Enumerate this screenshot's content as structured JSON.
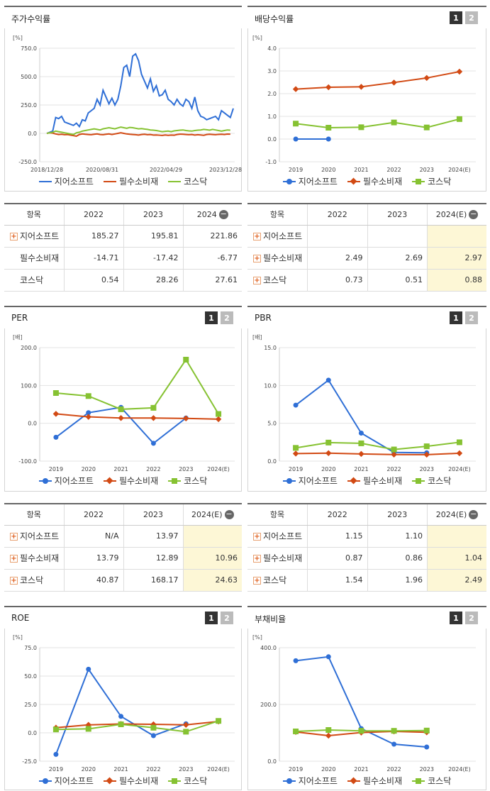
{
  "colors": {
    "series1": "#2f6fd6",
    "series2": "#d24a14",
    "series3": "#86c232"
  },
  "panels": [
    {
      "title": "주가수익률",
      "buttons": []
    },
    {
      "title": "배당수익률",
      "buttons": [
        "1",
        "2"
      ]
    },
    {
      "title": "PER",
      "buttons": [
        "1",
        "2"
      ]
    },
    {
      "title": "PBR",
      "buttons": [
        "1",
        "2"
      ]
    },
    {
      "title": "ROE",
      "buttons": [
        "1",
        "2"
      ]
    },
    {
      "title": "부채비율",
      "buttons": [
        "1",
        "2"
      ]
    }
  ],
  "legend": [
    "지어소프트",
    "필수소비재",
    "코스닥"
  ],
  "chart_data": [
    {
      "type": "line",
      "unit": "[%]",
      "x_ticks": [
        "2018/12/28",
        "2020/08/31",
        "2022/04/29",
        "2023/12/28"
      ],
      "y_ticks": [
        "750.0",
        "500.0",
        "250.0",
        "0.0",
        "-250.0"
      ],
      "ylim": [
        -250,
        750
      ],
      "series": [
        {
          "name": "지어소프트",
          "values": [
            0,
            10,
            20,
            140,
            130,
            150,
            100,
            90,
            80,
            70,
            90,
            60,
            120,
            110,
            180,
            200,
            220,
            300,
            250,
            380,
            320,
            260,
            310,
            250,
            300,
            420,
            580,
            600,
            500,
            680,
            700,
            640,
            520,
            460,
            400,
            480,
            370,
            420,
            330,
            340,
            380,
            300,
            280,
            250,
            300,
            260,
            240,
            300,
            280,
            220,
            320,
            200,
            150,
            140,
            120,
            130,
            140,
            150,
            120,
            200,
            180,
            160,
            140,
            220
          ]
        },
        {
          "name": "필수소비재",
          "values": [
            0,
            5,
            2,
            -5,
            -10,
            -8,
            -12,
            -10,
            -15,
            -20,
            -25,
            -10,
            -5,
            -8,
            -10,
            -12,
            -8,
            -5,
            -10,
            -12,
            -8,
            -5,
            -10,
            -5,
            0,
            5,
            0,
            -5,
            -8,
            -10,
            -12,
            -15,
            -10,
            -8,
            -12,
            -10,
            -15,
            -14,
            -16,
            -18,
            -14,
            -17,
            -15,
            -16,
            -10,
            -7,
            -8,
            -10,
            -12,
            -10,
            -15,
            -12,
            -14,
            -17,
            -10,
            -8,
            -10,
            -12,
            -9,
            -8,
            -10,
            -6,
            -7
          ]
        },
        {
          "name": "코스닥",
          "values": [
            0,
            5,
            10,
            20,
            15,
            10,
            5,
            0,
            -5,
            -10,
            5,
            10,
            20,
            25,
            30,
            35,
            40,
            35,
            30,
            40,
            45,
            50,
            45,
            40,
            48,
            55,
            50,
            45,
            52,
            50,
            45,
            40,
            42,
            38,
            35,
            30,
            28,
            25,
            20,
            15,
            18,
            20,
            15,
            22,
            25,
            28,
            30,
            25,
            22,
            20,
            25,
            28,
            30,
            35,
            32,
            28,
            35,
            30,
            25,
            20,
            25,
            30,
            28
          ]
        }
      ]
    },
    {
      "type": "line",
      "unit": "[%]",
      "categories": [
        "2019",
        "2020",
        "2021",
        "2022",
        "2023",
        "2024(E)"
      ],
      "y_ticks": [
        "4.0",
        "3.0",
        "2.0",
        "1.0",
        "0.0",
        "-1.0"
      ],
      "ylim": [
        -1,
        4
      ],
      "series": [
        {
          "name": "지어소프트",
          "values": [
            0.0,
            0.0,
            null,
            null,
            null,
            null
          ]
        },
        {
          "name": "필수소비재",
          "values": [
            2.2,
            2.28,
            2.3,
            2.49,
            2.69,
            2.97
          ]
        },
        {
          "name": "코스닥",
          "values": [
            0.68,
            0.5,
            0.52,
            0.73,
            0.51,
            0.88
          ]
        }
      ]
    },
    {
      "type": "line",
      "unit": "[배]",
      "categories": [
        "2019",
        "2020",
        "2021",
        "2022",
        "2023",
        "2024(E)"
      ],
      "y_ticks": [
        "200.0",
        "100.0",
        "0.0",
        "-100.0"
      ],
      "ylim": [
        -100,
        200
      ],
      "series": [
        {
          "name": "지어소프트",
          "values": [
            -37,
            28,
            42,
            -53,
            13.97,
            null
          ]
        },
        {
          "name": "필수소비재",
          "values": [
            25,
            17,
            14,
            13.79,
            12.89,
            10.96
          ]
        },
        {
          "name": "코스닥",
          "values": [
            80,
            72,
            37,
            40.87,
            168.17,
            24.63
          ]
        }
      ]
    },
    {
      "type": "line",
      "unit": "[배]",
      "categories": [
        "2019",
        "2020",
        "2021",
        "2022",
        "2023",
        "2024(E)"
      ],
      "y_ticks": [
        "15.0",
        "10.0",
        "5.0",
        "0.0"
      ],
      "ylim": [
        0,
        15
      ],
      "series": [
        {
          "name": "지어소프트",
          "values": [
            7.4,
            10.7,
            3.7,
            1.15,
            1.1,
            null
          ]
        },
        {
          "name": "필수소비재",
          "values": [
            1.0,
            1.05,
            0.95,
            0.87,
            0.86,
            1.04
          ]
        },
        {
          "name": "코스닥",
          "values": [
            1.75,
            2.45,
            2.35,
            1.54,
            1.96,
            2.49
          ]
        }
      ]
    },
    {
      "type": "line",
      "unit": "[%]",
      "categories": [
        "2019",
        "2020",
        "2021",
        "2022",
        "2023",
        "2024(E)"
      ],
      "y_ticks": [
        "75.0",
        "50.0",
        "25.0",
        "0.0",
        "-25.0"
      ],
      "ylim": [
        -25,
        75
      ],
      "series": [
        {
          "name": "지어소프트",
          "values": [
            -19,
            56,
            14.5,
            -2.5,
            8,
            null
          ]
        },
        {
          "name": "필수소비재",
          "values": [
            4.5,
            7,
            7.8,
            7.5,
            7,
            10
          ]
        },
        {
          "name": "코스닥",
          "values": [
            3,
            3.5,
            7.5,
            4.5,
            1,
            10.5
          ]
        }
      ]
    },
    {
      "type": "line",
      "unit": "[%]",
      "categories": [
        "2019",
        "2020",
        "2021",
        "2022",
        "2023",
        "2024(E)"
      ],
      "y_ticks": [
        "400.0",
        "200.0",
        "0.0"
      ],
      "ylim": [
        0,
        400
      ],
      "series": [
        {
          "name": "지어소프트",
          "values": [
            354,
            368,
            115,
            60,
            50,
            null
          ]
        },
        {
          "name": "필수소비재",
          "values": [
            103,
            90,
            101,
            105,
            102,
            null
          ]
        },
        {
          "name": "코스닥",
          "values": [
            105,
            110,
            107,
            107,
            108,
            null
          ]
        }
      ]
    }
  ],
  "tables": [
    {
      "header": [
        "항목",
        "2022",
        "2023",
        "2024"
      ],
      "has_minus": true,
      "highlight_last": false,
      "rows": [
        {
          "label": "지어소프트",
          "plus": true,
          "values": [
            "185.27",
            "195.81",
            "221.86"
          ]
        },
        {
          "label": "필수소비재",
          "plus": false,
          "values": [
            "-14.71",
            "-17.42",
            "-6.77"
          ]
        },
        {
          "label": "코스닥",
          "plus": false,
          "values": [
            "0.54",
            "28.26",
            "27.61"
          ]
        }
      ]
    },
    {
      "header": [
        "항목",
        "2022",
        "2023",
        "2024(E)"
      ],
      "has_minus": true,
      "highlight_last": true,
      "rows": [
        {
          "label": "지어소프트",
          "plus": true,
          "values": [
            "",
            "",
            ""
          ]
        },
        {
          "label": "필수소비재",
          "plus": true,
          "values": [
            "2.49",
            "2.69",
            "2.97"
          ]
        },
        {
          "label": "코스닥",
          "plus": true,
          "values": [
            "0.73",
            "0.51",
            "0.88"
          ]
        }
      ]
    },
    {
      "header": [
        "항목",
        "2022",
        "2023",
        "2024(E)"
      ],
      "has_minus": true,
      "highlight_last": true,
      "rows": [
        {
          "label": "지어소프트",
          "plus": true,
          "values": [
            "N/A",
            "13.97",
            ""
          ]
        },
        {
          "label": "필수소비재",
          "plus": true,
          "values": [
            "13.79",
            "12.89",
            "10.96"
          ]
        },
        {
          "label": "코스닥",
          "plus": true,
          "values": [
            "40.87",
            "168.17",
            "24.63"
          ]
        }
      ]
    },
    {
      "header": [
        "항목",
        "2022",
        "2023",
        "2024(E)"
      ],
      "has_minus": true,
      "highlight_last": true,
      "rows": [
        {
          "label": "지어소프트",
          "plus": true,
          "values": [
            "1.15",
            "1.10",
            ""
          ]
        },
        {
          "label": "필수소비재",
          "plus": true,
          "values": [
            "0.87",
            "0.86",
            "1.04"
          ]
        },
        {
          "label": "코스닥",
          "plus": true,
          "values": [
            "1.54",
            "1.96",
            "2.49"
          ]
        }
      ]
    }
  ]
}
